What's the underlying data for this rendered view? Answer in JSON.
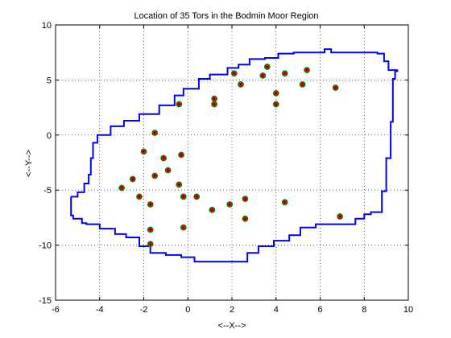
{
  "chart_data": {
    "type": "scatter",
    "title": "Location of 35 Tors in the Bodmin Moor Region",
    "xlabel": "<--X-->",
    "ylabel": "<--Y-->",
    "xlim": [
      -6,
      10
    ],
    "ylim": [
      -15,
      10
    ],
    "x_ticks": [
      -6,
      -4,
      -2,
      0,
      2,
      4,
      6,
      8,
      10
    ],
    "y_ticks": [
      -15,
      -10,
      -5,
      0,
      5,
      10
    ],
    "grid": true,
    "boundary_color": "#0000ff",
    "marker_fill": "#ff0000",
    "marker_edge": "#008000",
    "boundary": [
      [
        -5.3,
        -5.6
      ],
      [
        -5.2,
        -7.3
      ],
      [
        -4.8,
        -7.6
      ],
      [
        -4.6,
        -8.0
      ],
      [
        -4.0,
        -8.1
      ],
      [
        -3.3,
        -8.5
      ],
      [
        -2.8,
        -9.0
      ],
      [
        -2.2,
        -9.3
      ],
      [
        -1.7,
        -10.1
      ],
      [
        -1.0,
        -10.7
      ],
      [
        -0.3,
        -10.9
      ],
      [
        0.3,
        -11.1
      ],
      [
        1.0,
        -11.5
      ],
      [
        2.7,
        -11.5
      ],
      [
        3.2,
        -10.7
      ],
      [
        3.9,
        -10.1
      ],
      [
        4.6,
        -9.6
      ],
      [
        5.1,
        -9.1
      ],
      [
        5.8,
        -8.4
      ],
      [
        6.3,
        -8.1
      ],
      [
        7.6,
        -8.1
      ],
      [
        8.0,
        -7.6
      ],
      [
        8.3,
        -7.2
      ],
      [
        8.8,
        -7.0
      ],
      [
        9.0,
        -5.1
      ],
      [
        9.2,
        -2.1
      ],
      [
        9.3,
        1.2
      ],
      [
        9.4,
        5.1
      ],
      [
        9.5,
        5.8
      ],
      [
        9.1,
        5.9
      ],
      [
        8.9,
        6.7
      ],
      [
        8.6,
        7.4
      ],
      [
        6.5,
        7.5
      ],
      [
        6.2,
        7.8
      ],
      [
        4.8,
        7.5
      ],
      [
        4.1,
        7.4
      ],
      [
        3.5,
        7.0
      ],
      [
        2.8,
        6.9
      ],
      [
        2.3,
        6.4
      ],
      [
        1.8,
        6.1
      ],
      [
        1.0,
        5.5
      ],
      [
        0.5,
        5.1
      ],
      [
        -0.2,
        4.2
      ],
      [
        -0.6,
        3.6
      ],
      [
        -1.3,
        2.7
      ],
      [
        -2.2,
        1.9
      ],
      [
        -2.9,
        1.3
      ],
      [
        -3.5,
        0.8
      ],
      [
        -4.1,
        0.0
      ],
      [
        -4.3,
        -0.7
      ],
      [
        -4.4,
        -2.1
      ],
      [
        -4.5,
        -3.6
      ],
      [
        -4.7,
        -4.4
      ],
      [
        -5.0,
        -5.2
      ],
      [
        -5.3,
        -5.6
      ]
    ],
    "points": [
      [
        -3.0,
        -4.8
      ],
      [
        -2.5,
        -4.0
      ],
      [
        -2.2,
        -5.6
      ],
      [
        -2.0,
        -1.5
      ],
      [
        -1.7,
        -6.3
      ],
      [
        -1.7,
        -8.6
      ],
      [
        -1.7,
        -9.9
      ],
      [
        -1.5,
        0.2
      ],
      [
        -1.5,
        -3.7
      ],
      [
        -1.1,
        -2.1
      ],
      [
        -0.9,
        -3.2
      ],
      [
        -0.4,
        -4.5
      ],
      [
        -0.4,
        2.8
      ],
      [
        -0.3,
        -1.8
      ],
      [
        -0.2,
        -5.6
      ],
      [
        -0.2,
        -8.4
      ],
      [
        0.4,
        -5.6
      ],
      [
        1.1,
        -6.8
      ],
      [
        1.2,
        3.3
      ],
      [
        1.2,
        2.8
      ],
      [
        1.9,
        -6.3
      ],
      [
        2.1,
        5.6
      ],
      [
        2.4,
        4.6
      ],
      [
        2.6,
        -5.8
      ],
      [
        2.6,
        -7.6
      ],
      [
        3.4,
        5.4
      ],
      [
        3.6,
        6.2
      ],
      [
        4.0,
        3.8
      ],
      [
        4.0,
        2.8
      ],
      [
        4.4,
        5.6
      ],
      [
        4.4,
        -6.1
      ],
      [
        5.2,
        4.6
      ],
      [
        5.4,
        5.9
      ],
      [
        6.7,
        4.3
      ],
      [
        6.9,
        -7.4
      ]
    ]
  }
}
